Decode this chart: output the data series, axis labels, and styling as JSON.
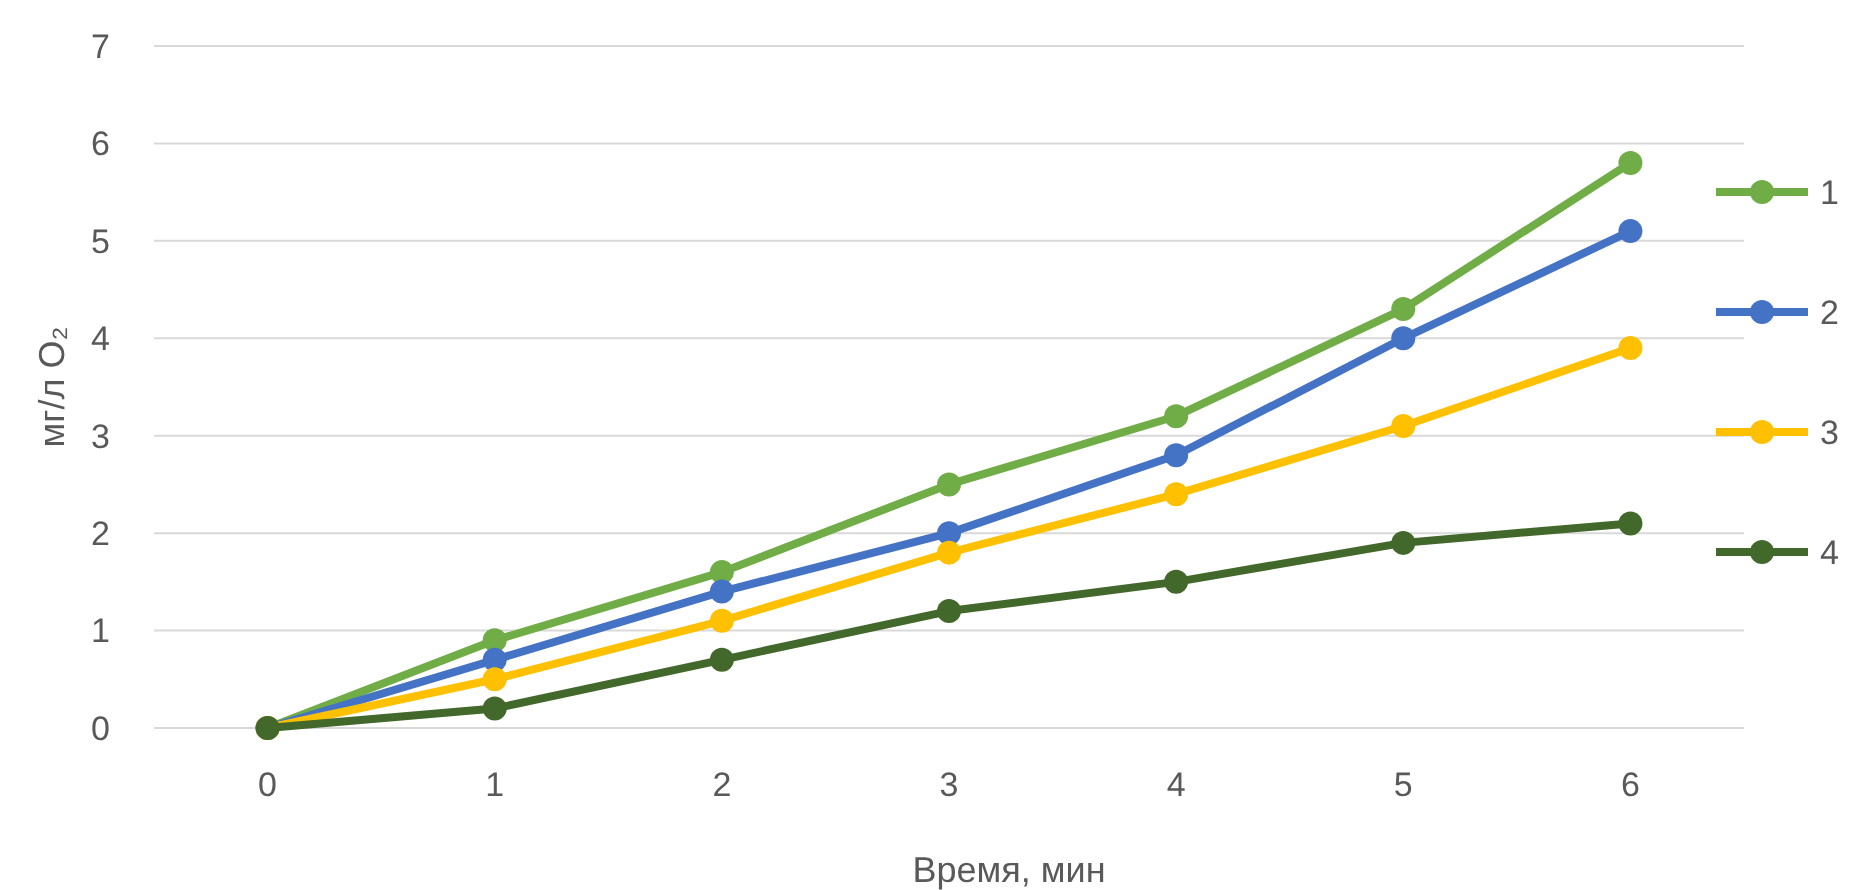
{
  "chart_data": {
    "type": "line",
    "xlabel": "Время, мин",
    "ylabel": "мг/л O₂",
    "categories": [
      "0",
      "1",
      "2",
      "3",
      "4",
      "5",
      "6"
    ],
    "series": [
      {
        "name": "1",
        "color": "#70ad47",
        "values": [
          0,
          0.9,
          1.6,
          2.5,
          3.2,
          4.3,
          5.8
        ]
      },
      {
        "name": "2",
        "color": "#4472c4",
        "values": [
          0,
          0.7,
          1.4,
          2.0,
          2.8,
          4.0,
          5.1
        ]
      },
      {
        "name": "3",
        "color": "#ffc000",
        "values": [
          0,
          0.5,
          1.1,
          1.8,
          2.4,
          3.1,
          3.9
        ]
      },
      {
        "name": "4",
        "color": "#43682b",
        "values": [
          0,
          0.2,
          0.7,
          1.2,
          1.5,
          1.9,
          2.1
        ]
      }
    ],
    "ylim": [
      0,
      7
    ],
    "yticks": [
      0,
      1,
      2,
      3,
      4,
      5,
      6,
      7
    ],
    "grid": "y",
    "legend": "right",
    "marker": "circle",
    "line_style": "solid"
  }
}
